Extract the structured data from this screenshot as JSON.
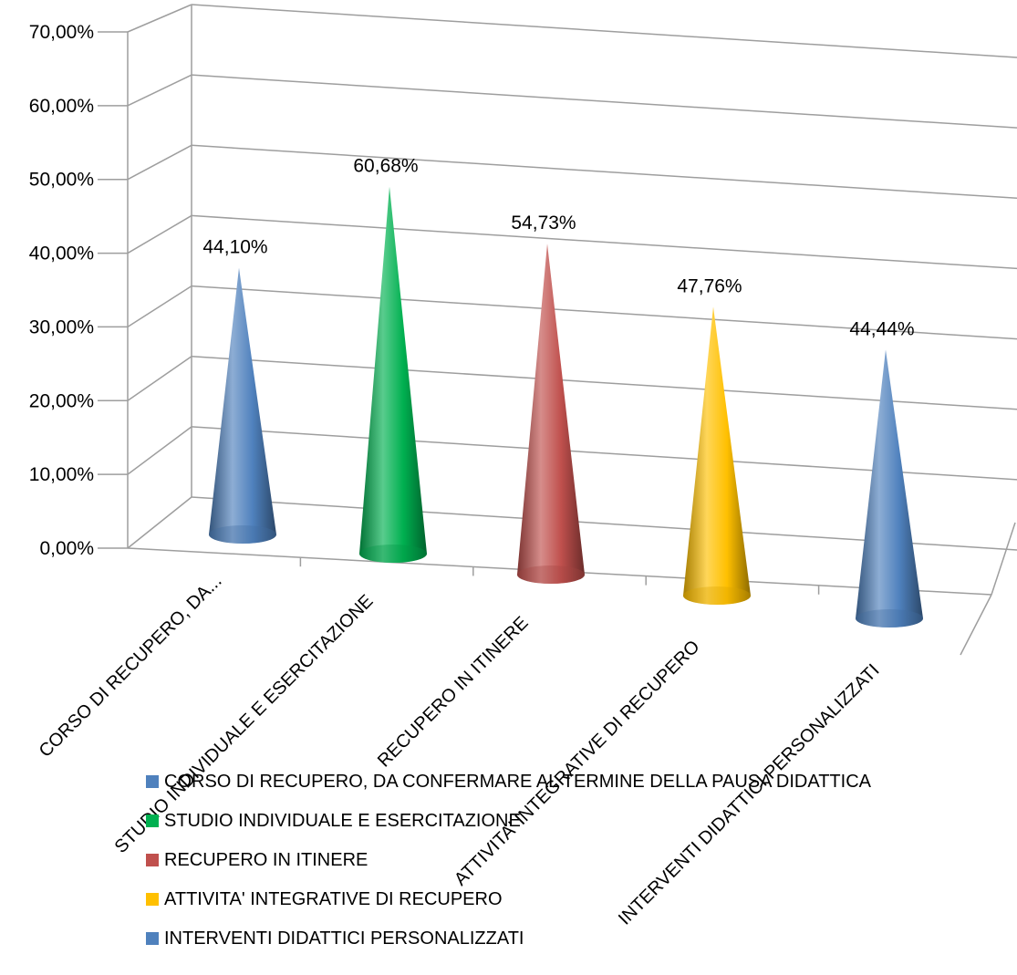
{
  "chart_data": {
    "type": "bar",
    "subtype": "3d-cone",
    "categories": [
      "CORSO DI RECUPERO, DA CONFERMARE AL TERMINE DELLA PAUSA DIDATTICA",
      "STUDIO INDIVIDUALE E ESERCITAZIONE",
      "RECUPERO IN ITINERE",
      "ATTIVITA' INTEGRATIVE DI RECUPERO",
      "INTERVENTI DIDATTICI PERSONALIZZATI"
    ],
    "category_axis_labels": [
      "CORSO DI RECUPERO, DA...",
      "STUDIO INDIVIDUALE E ESERCITAZIONE",
      "RECUPERO IN ITINERE",
      "ATTIVITA' INTEGRATIVE DI RECUPERO",
      "INTERVENTI DIDATTICI PERSONALIZZATI"
    ],
    "values": [
      44.1,
      60.68,
      54.73,
      47.76,
      44.44
    ],
    "data_labels": [
      "44,10%",
      "60,68%",
      "54,73%",
      "47,76%",
      "44,44%"
    ],
    "colors": [
      "#4f81bd",
      "#00b050",
      "#c0504d",
      "#ffc000",
      "#4f81bd"
    ],
    "ylim": [
      0,
      70
    ],
    "y_ticks": [
      "0,00%",
      "10,00%",
      "20,00%",
      "30,00%",
      "40,00%",
      "50,00%",
      "60,00%",
      "70,00%"
    ],
    "grid": true,
    "legend_position": "bottom",
    "legend": [
      "CORSO DI RECUPERO, DA CONFERMARE AL TERMINE DELLA PAUSA DIDATTICA",
      "STUDIO INDIVIDUALE E ESERCITAZIONE",
      "RECUPERO IN ITINERE",
      "ATTIVITA' INTEGRATIVE DI RECUPERO",
      "INTERVENTI DIDATTICI PERSONALIZZATI"
    ]
  }
}
